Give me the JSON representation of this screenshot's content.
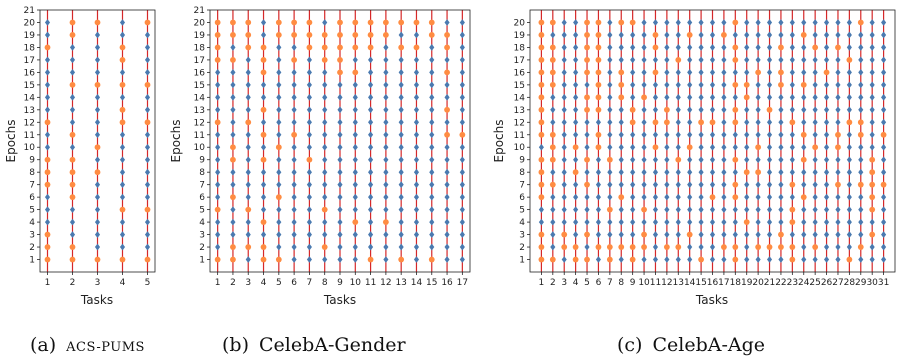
{
  "colors": {
    "line": "#d62728",
    "selected_marker": "#4a7ab0",
    "other_marker": "#ff8c42"
  },
  "captions": [
    {
      "prefix": "(a)",
      "text": "ACS-PUMS"
    },
    {
      "prefix": "(b)",
      "text": "CelebA-Gender"
    },
    {
      "prefix": "(c)",
      "text": "CelebA-Age"
    }
  ],
  "chart_data": [
    {
      "type": "scatter",
      "title": "",
      "xlabel": "Tasks",
      "ylabel": "Epochs",
      "x": [
        1,
        2,
        3,
        4,
        5
      ],
      "xlim": [
        0.7,
        5.3
      ],
      "ylim": [
        0,
        21
      ],
      "yticks": [
        1,
        2,
        3,
        4,
        5,
        6,
        7,
        8,
        9,
        10,
        11,
        12,
        13,
        14,
        15,
        16,
        17,
        18,
        19,
        20,
        21
      ],
      "epochs": 20,
      "selected_epochs": {
        "1": [
          4,
          5,
          6,
          10,
          11,
          13,
          14,
          15,
          16,
          17,
          19,
          20
        ],
        "2": [
          3,
          4,
          5,
          10,
          12,
          13,
          14,
          16,
          17,
          18
        ],
        "3": [
          2,
          3,
          4,
          5,
          6,
          7,
          9,
          11,
          12,
          13,
          14,
          16,
          17,
          18,
          19
        ],
        "4": [
          2,
          3,
          4,
          6,
          7,
          8,
          9,
          10,
          11,
          14,
          16,
          19,
          20
        ],
        "5": [
          2,
          3,
          4,
          6,
          7,
          8,
          9,
          10,
          11,
          13,
          14,
          16,
          17,
          18,
          19
        ]
      }
    },
    {
      "type": "scatter",
      "title": "",
      "xlabel": "Tasks",
      "ylabel": "Epochs",
      "x": [
        1,
        2,
        3,
        4,
        5,
        6,
        7,
        8,
        9,
        10,
        11,
        12,
        13,
        14,
        15,
        16,
        17
      ],
      "xlim": [
        0.5,
        17.5
      ],
      "ylim": [
        0,
        21
      ],
      "yticks": [
        1,
        2,
        3,
        4,
        5,
        6,
        7,
        8,
        9,
        10,
        11,
        12,
        13,
        14,
        15,
        16,
        17,
        18,
        19,
        20,
        21
      ],
      "epochs": 20,
      "selected_epochs": {
        "1": [
          2,
          3,
          4,
          6,
          7,
          8,
          9,
          10,
          11,
          13,
          14,
          15,
          16
        ],
        "2": [
          3,
          4,
          5,
          7,
          8,
          11,
          12,
          13,
          14,
          15,
          16,
          18
        ],
        "3": [
          1,
          3,
          4,
          6,
          7,
          8,
          9,
          10,
          11,
          13,
          14,
          15,
          16,
          17
        ],
        "4": [
          3,
          5,
          6,
          7,
          8,
          10,
          12,
          14,
          15,
          19,
          20
        ],
        "5": [
          2,
          3,
          4,
          5,
          7,
          8,
          9,
          11,
          12,
          13,
          14,
          15,
          16,
          17,
          18
        ],
        "6": [
          1,
          2,
          3,
          4,
          5,
          6,
          7,
          8,
          9,
          10,
          12,
          13,
          14,
          15,
          16,
          18
        ],
        "7": [
          1,
          2,
          3,
          4,
          5,
          6,
          7,
          8,
          10,
          11,
          12,
          13,
          14,
          15,
          16,
          17
        ],
        "8": [
          1,
          3,
          4,
          6,
          7,
          8,
          9,
          10,
          11,
          12,
          13,
          14,
          15,
          16,
          20
        ],
        "9": [
          1,
          2,
          3,
          4,
          5,
          6,
          7,
          8,
          9,
          10,
          11,
          12,
          13,
          14,
          15
        ],
        "10": [
          1,
          2,
          3,
          5,
          6,
          7,
          8,
          9,
          10,
          11,
          12,
          13,
          14,
          15,
          17
        ],
        "11": [
          2,
          3,
          4,
          5,
          6,
          7,
          8,
          9,
          10,
          11,
          12,
          13,
          14,
          15,
          16,
          17
        ],
        "12": [
          1,
          2,
          3,
          5,
          6,
          7,
          8,
          9,
          10,
          11,
          12,
          13,
          14,
          15,
          16,
          17,
          18
        ],
        "13": [
          2,
          3,
          4,
          5,
          6,
          7,
          8,
          9,
          10,
          11,
          12,
          13,
          14,
          15,
          16,
          17,
          19
        ],
        "14": [
          1,
          2,
          3,
          4,
          5,
          6,
          7,
          8,
          9,
          10,
          11,
          12,
          13,
          14,
          15,
          16,
          17,
          19
        ],
        "15": [
          2,
          3,
          4,
          5,
          6,
          7,
          8,
          9,
          10,
          11,
          12,
          13,
          14,
          15,
          16,
          17,
          18
        ],
        "16": [
          1,
          2,
          3,
          4,
          5,
          6,
          7,
          8,
          9,
          10,
          12,
          14,
          15,
          17,
          20
        ],
        "17": [
          1,
          2,
          3,
          4,
          5,
          6,
          7,
          8,
          9,
          10,
          12,
          13,
          14,
          15,
          16,
          17,
          18,
          19,
          20
        ]
      }
    },
    {
      "type": "scatter",
      "title": "",
      "xlabel": "Tasks",
      "ylabel": "Epochs",
      "x": [
        1,
        2,
        3,
        4,
        5,
        6,
        7,
        8,
        9,
        10,
        11,
        12,
        13,
        14,
        15,
        16,
        17,
        18,
        19,
        20,
        21,
        22,
        23,
        24,
        25,
        26,
        27,
        28,
        29,
        30,
        31
      ],
      "xlim": [
        0,
        32
      ],
      "ylim": [
        0,
        21
      ],
      "yticks": [
        1,
        2,
        3,
        4,
        5,
        6,
        7,
        8,
        9,
        10,
        11,
        12,
        13,
        14,
        15,
        16,
        17,
        18,
        19,
        20
      ],
      "epochs": 20,
      "selected_epochs": {
        "1": [
          4,
          5,
          10
        ],
        "2": [
          2,
          3,
          4,
          5,
          6,
          8,
          12,
          13,
          14,
          19
        ],
        "3": [
          1,
          4,
          5,
          6,
          7,
          8,
          9,
          10,
          11,
          12,
          13,
          14,
          15,
          16,
          17,
          18,
          19,
          20
        ],
        "4": [
          3,
          4,
          5,
          6,
          7,
          9,
          11,
          12,
          13,
          14,
          15,
          16,
          17,
          18,
          19,
          20
        ],
        "5": [
          2,
          4,
          5,
          6,
          8,
          10,
          11,
          12,
          15
        ],
        "6": [
          1,
          3,
          4,
          5,
          6,
          7,
          8,
          9,
          12
        ],
        "7": [
          3,
          4,
          6,
          7,
          8,
          10,
          11,
          12,
          13,
          14,
          15,
          16,
          17,
          18,
          19,
          20
        ],
        "8": [
          1,
          3,
          4,
          5,
          7,
          8,
          9,
          10,
          11,
          12,
          13,
          17,
          18,
          19
        ],
        "9": [
          3,
          4,
          5,
          6,
          7,
          8,
          9,
          10,
          11,
          14,
          15,
          16,
          17,
          18,
          19
        ],
        "10": [
          1,
          4,
          6,
          7,
          8,
          9,
          10,
          11,
          12,
          13,
          15,
          16,
          17,
          18,
          19,
          20
        ],
        "11": [
          1,
          2,
          3,
          4,
          5,
          6,
          7,
          8,
          9,
          11,
          13,
          14,
          15,
          17,
          20
        ],
        "12": [
          1,
          3,
          4,
          5,
          6,
          7,
          8,
          9,
          10,
          11,
          14,
          15,
          16,
          17,
          18,
          19,
          20
        ],
        "13": [
          1,
          3,
          4,
          5,
          6,
          7,
          8,
          10,
          11,
          12,
          13,
          14,
          15,
          16,
          18,
          19,
          20
        ],
        "14": [
          1,
          2,
          4,
          5,
          6,
          7,
          8,
          9,
          11,
          12,
          13,
          14,
          15,
          16,
          17,
          18,
          20
        ],
        "15": [
          2,
          3,
          4,
          5,
          6,
          7,
          8,
          9,
          10,
          11,
          13,
          14,
          15,
          16,
          17,
          18,
          19,
          20
        ],
        "16": [
          1,
          2,
          3,
          4,
          5,
          7,
          8,
          9,
          10,
          11,
          13,
          14,
          15,
          16,
          17,
          18,
          19,
          20
        ],
        "17": [
          1,
          3,
          4,
          5,
          6,
          7,
          8,
          9,
          10,
          11,
          12,
          13,
          14,
          15,
          16,
          17,
          18,
          20
        ],
        "18": [
          3,
          4,
          5,
          8,
          10,
          11,
          14,
          16,
          19
        ],
        "19": [
          1,
          2,
          3,
          5,
          6,
          7,
          9,
          10,
          11,
          12,
          13,
          16,
          17,
          18,
          19,
          20
        ],
        "20": [
          1,
          3,
          4,
          5,
          6,
          7,
          9,
          11,
          12,
          13,
          14,
          15,
          17,
          18,
          19,
          20
        ],
        "21": [
          1,
          3,
          4,
          5,
          6,
          7,
          8,
          9,
          10,
          11,
          12,
          14,
          15,
          16,
          17,
          18,
          19,
          20
        ],
        "22": [
          1,
          4,
          5,
          6,
          7,
          8,
          9,
          10,
          11,
          12,
          13,
          14,
          17,
          19,
          20
        ],
        "23": [
          3,
          6,
          8,
          9,
          10,
          11,
          13,
          14,
          15,
          16,
          17,
          18,
          19,
          20
        ],
        "24": [
          1,
          2,
          3,
          4,
          5,
          7,
          8,
          10,
          12,
          13,
          14,
          16,
          17,
          18,
          20
        ],
        "25": [
          1,
          3,
          4,
          5,
          6,
          7,
          8,
          9,
          11,
          12,
          13,
          14,
          15,
          16,
          17,
          19,
          20
        ],
        "26": [
          1,
          2,
          3,
          4,
          5,
          6,
          7,
          8,
          9,
          10,
          11,
          12,
          13,
          14,
          15,
          17,
          18,
          19,
          20
        ],
        "27": [
          1,
          2,
          3,
          4,
          5,
          6,
          8,
          9,
          12,
          13,
          14,
          15,
          16,
          17,
          19,
          20
        ],
        "28": [
          2,
          3,
          4,
          5,
          6,
          7,
          8,
          9,
          10,
          11,
          13,
          14,
          15,
          16,
          18,
          19,
          20
        ],
        "29": [
          1,
          3,
          4,
          5,
          6,
          8,
          9,
          10,
          13,
          14,
          15,
          16,
          17,
          18,
          19
        ],
        "30": [
          1,
          2,
          4,
          10,
          11,
          12,
          13,
          14,
          15,
          16,
          17,
          18,
          19,
          20
        ],
        "31": [
          1,
          2,
          3,
          4,
          5,
          6,
          8,
          9,
          10,
          12,
          13,
          14,
          15,
          16,
          17,
          18,
          19,
          20
        ]
      }
    }
  ]
}
